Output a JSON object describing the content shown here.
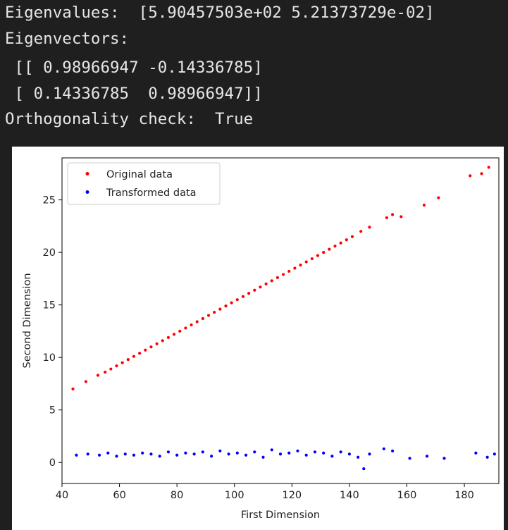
{
  "console": {
    "lines": [
      "Eigenvalues:  [5.90457503e+02 5.21373729e-02]",
      "Eigenvectors:",
      " [[ 0.98966947 -0.14336785]",
      " [ 0.14336785  0.98966947]]",
      "Orthogonality check:  True"
    ],
    "background": "#1f1f1f",
    "text_color": "#e6e6e6"
  },
  "chart_data": {
    "type": "scatter",
    "title": "",
    "xlabel": "First Dimension",
    "ylabel": "Second Dimension",
    "xlim": [
      40,
      192
    ],
    "ylim": [
      -2,
      29
    ],
    "xticks": [
      40,
      60,
      80,
      100,
      120,
      140,
      160,
      180
    ],
    "yticks": [
      0,
      5,
      10,
      15,
      20,
      25
    ],
    "grid": false,
    "legend_position": "top-left",
    "series": [
      {
        "name": "Original data",
        "color": "#ff0000",
        "x": [
          43.8,
          48.3,
          52.5,
          55.0,
          57.0,
          59.0,
          61.0,
          63.0,
          65.0,
          67.0,
          69.0,
          71.0,
          73.0,
          75.0,
          77.0,
          79.0,
          81.0,
          83.0,
          85.0,
          87.0,
          89.0,
          91.0,
          93.0,
          95.0,
          97.0,
          99.0,
          101.0,
          103.0,
          105.0,
          107.0,
          109.0,
          111.0,
          113.0,
          115.0,
          117.0,
          119.0,
          121.0,
          123.0,
          125.0,
          127.0,
          129.0,
          131.0,
          133.0,
          135.0,
          137.0,
          139.0,
          141.0,
          144.0,
          147.0,
          153.0,
          155.0,
          158.0,
          166.0,
          171.0,
          182.0,
          186.0,
          188.5
        ],
        "y": [
          7.0,
          7.7,
          8.3,
          8.6,
          8.9,
          9.2,
          9.5,
          9.8,
          10.1,
          10.4,
          10.7,
          11.0,
          11.3,
          11.6,
          11.9,
          12.2,
          12.5,
          12.8,
          13.1,
          13.4,
          13.7,
          14.0,
          14.3,
          14.6,
          14.9,
          15.2,
          15.5,
          15.8,
          16.1,
          16.4,
          16.7,
          17.0,
          17.3,
          17.6,
          17.9,
          18.2,
          18.5,
          18.8,
          19.1,
          19.4,
          19.7,
          20.0,
          20.3,
          20.6,
          20.9,
          21.2,
          21.5,
          22.0,
          22.4,
          23.3,
          23.6,
          23.4,
          24.5,
          25.2,
          27.3,
          27.5,
          28.1
        ]
      },
      {
        "name": "Transformed data",
        "color": "#0000ff",
        "x": [
          45.0,
          49.0,
          53.0,
          56.0,
          59.0,
          62.0,
          65.0,
          68.0,
          71.0,
          74.0,
          77.0,
          80.0,
          83.0,
          86.0,
          89.0,
          92.0,
          95.0,
          98.0,
          101.0,
          104.0,
          107.0,
          110.0,
          113.0,
          116.0,
          119.0,
          122.0,
          125.0,
          128.0,
          131.0,
          134.0,
          137.0,
          140.0,
          143.0,
          145.0,
          147.0,
          152.0,
          155.0,
          161.0,
          167.0,
          173.0,
          184.0,
          188.0,
          190.5
        ],
        "y": [
          0.7,
          0.8,
          0.7,
          0.9,
          0.6,
          0.8,
          0.7,
          0.9,
          0.8,
          0.6,
          1.0,
          0.7,
          0.9,
          0.8,
          1.0,
          0.6,
          1.1,
          0.8,
          0.9,
          0.7,
          1.0,
          0.5,
          1.2,
          0.8,
          0.9,
          1.1,
          0.7,
          1.0,
          0.9,
          0.6,
          1.0,
          0.8,
          0.5,
          -0.6,
          0.8,
          1.3,
          1.1,
          0.4,
          0.6,
          0.4,
          0.9,
          0.5,
          0.8
        ]
      }
    ]
  }
}
